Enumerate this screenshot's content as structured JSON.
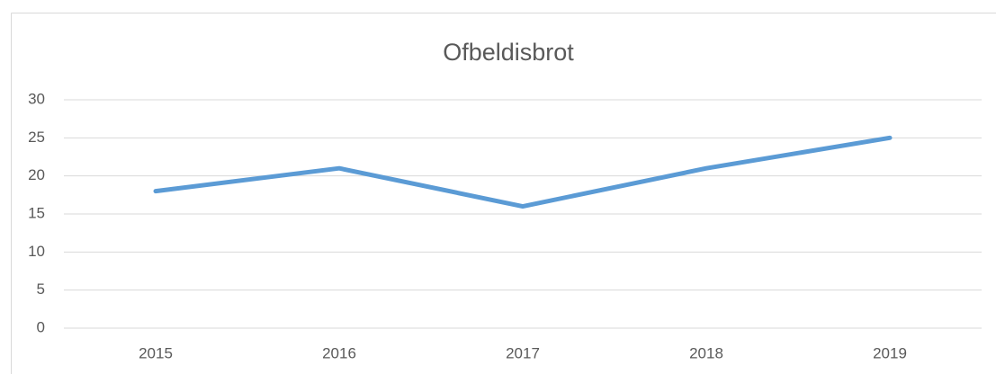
{
  "chart_data": {
    "type": "line",
    "title": "Ofbeldisbrot",
    "categories": [
      "2015",
      "2016",
      "2017",
      "2018",
      "2019"
    ],
    "series": [
      {
        "name": "Ofbeldisbrot",
        "color": "#5b9bd5",
        "values": [
          18,
          21,
          16,
          21,
          25
        ]
      }
    ],
    "ylim": [
      0,
      30
    ],
    "yticks": [
      0,
      5,
      10,
      15,
      20,
      25,
      30
    ],
    "grid": true
  }
}
